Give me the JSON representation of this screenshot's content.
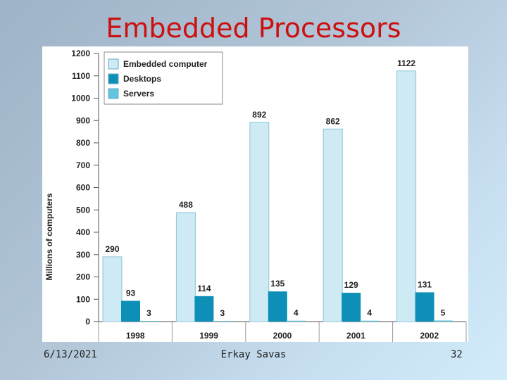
{
  "slide": {
    "title": "Embedded Processors",
    "footer_date": "6/13/2021",
    "footer_author": "Erkay Savas",
    "footer_page": "32"
  },
  "chart_data": {
    "type": "bar",
    "title": "",
    "xlabel": "",
    "ylabel": "Millions of computers",
    "categories": [
      "1998",
      "1999",
      "2000",
      "2001",
      "2002"
    ],
    "ylim": [
      0,
      1200
    ],
    "yticks": [
      0,
      100,
      200,
      300,
      400,
      500,
      600,
      700,
      800,
      900,
      1000,
      1100,
      1200
    ],
    "legend_position": "top-left",
    "series": [
      {
        "name": "Embedded computer",
        "color": "#cdeaf5",
        "values": [
          290,
          488,
          892,
          862,
          1122
        ]
      },
      {
        "name": "Desktops",
        "color": "#0d8fb8",
        "values": [
          93,
          114,
          135,
          129,
          131
        ]
      },
      {
        "name": "Servers",
        "color": "#62c6df",
        "values": [
          3,
          3,
          4,
          4,
          5
        ]
      }
    ]
  }
}
